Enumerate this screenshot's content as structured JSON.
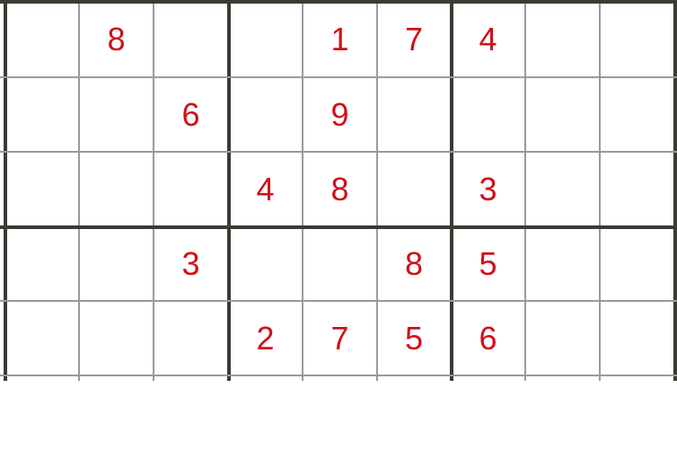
{
  "colors": {
    "digit": "#d01018",
    "thick_line": "#3b3b33",
    "thin_line": "#9a9a9a"
  },
  "grid": {
    "rows": [
      [
        "",
        "8",
        "",
        "",
        "1",
        "7",
        "4",
        "",
        ""
      ],
      [
        "",
        "",
        "6",
        "",
        "9",
        "",
        "",
        "",
        ""
      ],
      [
        "",
        "",
        "",
        "4",
        "8",
        "",
        "3",
        "",
        ""
      ],
      [
        "",
        "",
        "3",
        "",
        "",
        "8",
        "5",
        "",
        ""
      ],
      [
        "",
        "",
        "",
        "2",
        "7",
        "5",
        "6",
        "",
        ""
      ],
      [
        "",
        "",
        "",
        "",
        "",
        "",
        "",
        "",
        ""
      ]
    ]
  }
}
